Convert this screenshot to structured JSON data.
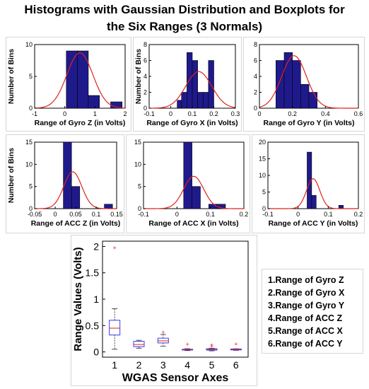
{
  "title": "Histograms with Gaussian Distribution and Boxplots for the Six Ranges (3 Normals)",
  "title_lines": [
    "Histograms with Gaussian Distribution and Boxplots for",
    "the Six Ranges (3 Normals)"
  ],
  "colors": {
    "bar": "#1f1a8c",
    "curve": "#e0211e",
    "box": "#3a3aee",
    "median": "#e0211e",
    "outlier": "#e0211e"
  },
  "legend_items": [
    "1.Range of Gyro Z",
    "2.Range of Gyro X",
    "3.Range of Gyro Y",
    "4.Range of ACC Z",
    "5.Range of ACC X",
    "6.Range of ACC Y"
  ],
  "chart_data": [
    {
      "type": "bar",
      "subtype": "histogram",
      "xlabel": "Range of Gyro Z (in Volts)",
      "ylabel": "Number of Bins",
      "xlim": [
        -1,
        2
      ],
      "ylim": [
        0,
        10
      ],
      "xticks": [
        -1,
        0,
        1,
        2
      ],
      "xtick_labels": [
        "-1",
        "0",
        "1",
        "2"
      ],
      "yticks": [
        0,
        5,
        10
      ],
      "bins": [
        [
          0.05,
          0.42,
          9
        ],
        [
          0.42,
          0.78,
          9
        ],
        [
          0.78,
          1.15,
          2
        ],
        [
          1.15,
          1.52,
          0
        ],
        [
          1.52,
          1.9,
          1
        ]
      ],
      "gaussian": {
        "mean": 0.5,
        "sd": 0.43,
        "peak": 8.7
      }
    },
    {
      "type": "bar",
      "subtype": "histogram",
      "xlabel": "Range of Gyro X (in Volts)",
      "ylabel": "Number of Bins",
      "xlim": [
        -0.1,
        0.3
      ],
      "ylim": [
        0,
        8
      ],
      "xticks": [
        -0.1,
        0,
        0.1,
        0.2,
        0.3
      ],
      "xtick_labels": [
        "-0.1",
        "0",
        "0.1",
        "0.2",
        "0.3"
      ],
      "yticks": [
        0,
        2,
        4,
        6,
        8
      ],
      "bins": [
        [
          0.03,
          0.05,
          1
        ],
        [
          0.05,
          0.075,
          2
        ],
        [
          0.075,
          0.1,
          7
        ],
        [
          0.1,
          0.125,
          6
        ],
        [
          0.125,
          0.15,
          2
        ],
        [
          0.15,
          0.175,
          2
        ],
        [
          0.175,
          0.2,
          6
        ]
      ],
      "gaussian": {
        "mean": 0.13,
        "sd": 0.06,
        "peak": 4.6
      }
    },
    {
      "type": "bar",
      "subtype": "histogram",
      "xlabel": "Range of Gyro Y (in Volts)",
      "ylabel": "",
      "xlim": [
        0,
        0.6
      ],
      "ylim": [
        0,
        8
      ],
      "xticks": [
        0,
        0.2,
        0.4,
        0.6
      ],
      "xtick_labels": [
        "0",
        "0.2",
        "0.4",
        "0.6"
      ],
      "yticks": [
        0,
        2,
        4,
        6,
        8
      ],
      "bins": [
        [
          0.1,
          0.15,
          6
        ],
        [
          0.15,
          0.2,
          7
        ],
        [
          0.2,
          0.25,
          6
        ],
        [
          0.25,
          0.3,
          3
        ],
        [
          0.3,
          0.35,
          2
        ]
      ],
      "gaussian": {
        "mean": 0.21,
        "sd": 0.075,
        "peak": 6.6
      }
    },
    {
      "type": "bar",
      "subtype": "histogram",
      "xlabel": "Range of ACC Z (in Volts)",
      "ylabel": "Number of Bins",
      "xlim": [
        -0.05,
        0.15
      ],
      "ylim": [
        0,
        15
      ],
      "xticks": [
        -0.05,
        0,
        0.05,
        0.1,
        0.15
      ],
      "xtick_labels": [
        "-0.05",
        "0",
        "0.05",
        "0.1",
        "0.15"
      ],
      "yticks": [
        0,
        5,
        10,
        15
      ],
      "bins": [
        [
          0.02,
          0.04,
          15
        ],
        [
          0.04,
          0.06,
          5
        ],
        [
          0.06,
          0.08,
          0
        ],
        [
          0.08,
          0.1,
          0
        ],
        [
          0.1,
          0.12,
          0
        ],
        [
          0.12,
          0.14,
          1
        ]
      ],
      "gaussian": {
        "mean": 0.043,
        "sd": 0.022,
        "peak": 8.3
      }
    },
    {
      "type": "bar",
      "subtype": "histogram",
      "xlabel": "Range of ACC X (in Volts)",
      "ylabel": "",
      "xlim": [
        -0.1,
        0.2
      ],
      "ylim": [
        0,
        15
      ],
      "xticks": [
        -0.1,
        0,
        0.1,
        0.2
      ],
      "xtick_labels": [
        "-0.1",
        "0",
        "0.1",
        "0.2"
      ],
      "yticks": [
        0,
        5,
        10,
        15
      ],
      "bins": [
        [
          0.02,
          0.045,
          15
        ],
        [
          0.045,
          0.07,
          5
        ],
        [
          0.07,
          0.095,
          0
        ],
        [
          0.095,
          0.12,
          1
        ],
        [
          0.12,
          0.145,
          1
        ]
      ],
      "gaussian": {
        "mean": 0.05,
        "sd": 0.03,
        "peak": 7.3
      }
    },
    {
      "type": "bar",
      "subtype": "histogram",
      "xlabel": "Range of ACC Y (in Volts)",
      "ylabel": "",
      "xlim": [
        -0.1,
        0.2
      ],
      "ylim": [
        0,
        20
      ],
      "xticks": [
        -0.1,
        0,
        0.1,
        0.2
      ],
      "xtick_labels": [
        "-0.1",
        "0",
        "0.1",
        "0.2"
      ],
      "yticks": [
        0,
        5,
        10,
        15,
        20
      ],
      "bins": [
        [
          0.03,
          0.045,
          17
        ],
        [
          0.045,
          0.06,
          4
        ],
        [
          0.06,
          0.075,
          0
        ],
        [
          0.075,
          0.09,
          0
        ],
        [
          0.09,
          0.105,
          0
        ],
        [
          0.105,
          0.12,
          0
        ],
        [
          0.12,
          0.135,
          0
        ],
        [
          0.135,
          0.15,
          1
        ]
      ],
      "gaussian": {
        "mean": 0.05,
        "sd": 0.022,
        "peak": 9
      }
    },
    {
      "type": "boxplot",
      "xlabel": "WGAS Sensor Axes",
      "ylabel": "Range Values (Volts)",
      "categories": [
        "1",
        "2",
        "3",
        "4",
        "5",
        "6"
      ],
      "ylim": [
        -0.1,
        2.1
      ],
      "yticks": [
        0,
        0.5,
        1,
        1.5,
        2
      ],
      "ytick_labels": [
        "0",
        "0.5",
        "1",
        "1.5",
        "2"
      ],
      "boxes": [
        {
          "whisker_low": 0.05,
          "q1": 0.32,
          "median": 0.45,
          "q3": 0.6,
          "whisker_high": 0.82,
          "outliers": [
            1.97
          ]
        },
        {
          "whisker_low": 0.07,
          "q1": 0.1,
          "median": 0.14,
          "q3": 0.2,
          "whisker_high": 0.22,
          "outliers": []
        },
        {
          "whisker_low": 0.11,
          "q1": 0.17,
          "median": 0.21,
          "q3": 0.26,
          "whisker_high": 0.33,
          "outliers": [
            0.37
          ]
        },
        {
          "whisker_low": 0.025,
          "q1": 0.035,
          "median": 0.04,
          "q3": 0.05,
          "whisker_high": 0.06,
          "outliers": [
            0.14
          ]
        },
        {
          "whisker_low": 0.02,
          "q1": 0.035,
          "median": 0.045,
          "q3": 0.06,
          "whisker_high": 0.07,
          "outliers": [
            0.11,
            0.13
          ]
        },
        {
          "whisker_low": 0.03,
          "q1": 0.038,
          "median": 0.045,
          "q3": 0.055,
          "whisker_high": 0.06,
          "outliers": [
            0.15
          ]
        }
      ]
    }
  ]
}
